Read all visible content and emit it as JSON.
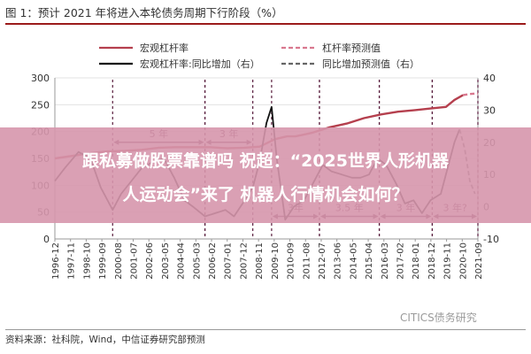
{
  "figure_title": "图 1：预计 2021 年将进入本轮债务周期下行阶段（%）",
  "headline": {
    "line1": "跟私募做股票靠谱吗 祝超：“2025世界人形机器",
    "line2": "人运动会”来了 机器人行情机会如何？"
  },
  "watermark": "CITICS债务研究",
  "source_note": "资料来源：社科院，Wind，中信证券研究部预测",
  "colors": {
    "leverage": "#b5404e",
    "yoy": "#111111",
    "forecast_leverage": "#d9788f",
    "forecast_yoy": "#666666",
    "headline_band": "#d696ac",
    "title_rule": "#9b1b1b",
    "annotation": "#5a1f3f"
  },
  "chart_data": {
    "type": "line",
    "x_ticks": [
      "1996-12",
      "1997-11",
      "1998-10",
      "1999-09",
      "2000-08",
      "2001-07",
      "2002-06",
      "2003-05",
      "2004-04",
      "2005-03",
      "2006-02",
      "2007-01",
      "2007-12",
      "2008-11",
      "2009-10",
      "2010-09",
      "2011-08",
      "2012-07",
      "2013-06",
      "2014-05",
      "2015-04",
      "2016-03",
      "2017-02",
      "2018-01",
      "2018-12",
      "2019-11",
      "2020-10",
      "2021-09"
    ],
    "x_range": [
      1996.92,
      2021.67
    ],
    "left_axis": {
      "range": [
        0,
        300
      ],
      "ticks": [
        0,
        50,
        100,
        150,
        200,
        250,
        300
      ]
    },
    "right_axis": {
      "range": [
        -10,
        40
      ],
      "ticks": [
        -10,
        0,
        10,
        20,
        30,
        40
      ]
    },
    "legend": {
      "placement": "top",
      "items": [
        {
          "name": "宏观杠杆率",
          "style": "solid",
          "color_key": "leverage"
        },
        {
          "name": "杠杆率预测值",
          "style": "dashed",
          "color_key": "forecast_leverage"
        },
        {
          "name": "宏观杠杆率:同比增加（右）",
          "style": "solid",
          "color_key": "yoy"
        },
        {
          "name": "同比增加预测值（右）",
          "style": "dashed",
          "color_key": "forecast_yoy"
        }
      ]
    },
    "series": [
      {
        "name": "宏观杠杆率",
        "axis": "left",
        "style": "solid",
        "color_key": "leverage",
        "points": [
          [
            1996.92,
            150
          ],
          [
            1998.0,
            155
          ],
          [
            1999.0,
            160
          ],
          [
            2000.0,
            163
          ],
          [
            2001.0,
            164
          ],
          [
            2002.0,
            166
          ],
          [
            2003.0,
            170
          ],
          [
            2004.0,
            171
          ],
          [
            2005.0,
            171
          ],
          [
            2006.0,
            171
          ],
          [
            2007.0,
            169
          ],
          [
            2008.0,
            170
          ],
          [
            2008.9,
            172
          ],
          [
            2009.8,
            186
          ],
          [
            2010.5,
            191
          ],
          [
            2011.0,
            191
          ],
          [
            2012.0,
            198
          ],
          [
            2013.0,
            208
          ],
          [
            2014.0,
            215
          ],
          [
            2015.0,
            225
          ],
          [
            2016.0,
            232
          ],
          [
            2017.0,
            237
          ],
          [
            2018.0,
            240
          ],
          [
            2018.9,
            243
          ],
          [
            2019.8,
            246
          ],
          [
            2020.3,
            259
          ],
          [
            2020.8,
            268
          ]
        ]
      },
      {
        "name": "杠杆率预测值",
        "axis": "left",
        "style": "dashed",
        "color_key": "forecast_leverage",
        "points": [
          [
            2020.8,
            268
          ],
          [
            2021.2,
            270
          ],
          [
            2021.67,
            271
          ]
        ]
      },
      {
        "name": "宏观杠杆率:同比增加（右）",
        "axis": "right",
        "style": "solid",
        "color_key": "yoy",
        "points": [
          [
            1996.92,
            8
          ],
          [
            1997.5,
            12
          ],
          [
            1998.3,
            17
          ],
          [
            1999.0,
            15
          ],
          [
            1999.6,
            6
          ],
          [
            2000.3,
            -1
          ],
          [
            2000.8,
            4
          ],
          [
            2001.4,
            8
          ],
          [
            2002.0,
            12
          ],
          [
            2002.7,
            14
          ],
          [
            2003.3,
            15
          ],
          [
            2003.9,
            9
          ],
          [
            2004.5,
            2
          ],
          [
            2005.0,
            0
          ],
          [
            2005.7,
            -3
          ],
          [
            2006.3,
            -2
          ],
          [
            2006.9,
            -1
          ],
          [
            2007.4,
            -3
          ],
          [
            2007.9,
            1
          ],
          [
            2008.5,
            6
          ],
          [
            2008.9,
            14
          ],
          [
            2009.3,
            26
          ],
          [
            2009.6,
            31
          ],
          [
            2009.9,
            15
          ],
          [
            2010.4,
            -4
          ],
          [
            2010.9,
            0
          ],
          [
            2011.5,
            2
          ],
          [
            2012.0,
            7
          ],
          [
            2012.6,
            13
          ],
          [
            2013.1,
            11
          ],
          [
            2013.7,
            10
          ],
          [
            2014.3,
            9
          ],
          [
            2014.8,
            9
          ],
          [
            2015.3,
            10
          ],
          [
            2015.8,
            15
          ],
          [
            2016.3,
            13
          ],
          [
            2016.9,
            7
          ],
          [
            2017.4,
            1
          ],
          [
            2017.9,
            2
          ],
          [
            2018.4,
            -2
          ],
          [
            2018.9,
            2
          ],
          [
            2019.5,
            4
          ],
          [
            2019.9,
            12
          ],
          [
            2020.3,
            20
          ],
          [
            2020.6,
            24
          ]
        ]
      },
      {
        "name": "同比增加预测值（右）",
        "axis": "right",
        "style": "dashed",
        "color_key": "forecast_yoy",
        "points": [
          [
            2020.6,
            24
          ],
          [
            2020.9,
            18
          ],
          [
            2021.2,
            8
          ],
          [
            2021.5,
            4
          ]
        ]
      }
    ],
    "annotations": [
      {
        "label": "5 年",
        "from": 2000.3,
        "to": 2005.7,
        "y": 20,
        "axis": "right"
      },
      {
        "label": "3 年",
        "from": 2005.7,
        "to": 2008.5,
        "y": 20,
        "axis": "right"
      },
      {
        "label": "3年",
        "from": 2009.6,
        "to": 2012.4,
        "y": -3,
        "axis": "right"
      },
      {
        "label": "3.5 年",
        "from": 2012.4,
        "to": 2015.9,
        "y": -3,
        "axis": "right"
      },
      {
        "label": "3 年",
        "from": 2015.9,
        "to": 2019.0,
        "y": -3,
        "axis": "right"
      },
      {
        "label": "3 年?",
        "from": 2019.0,
        "to": 2021.67,
        "y": -3,
        "axis": "right"
      }
    ]
  }
}
